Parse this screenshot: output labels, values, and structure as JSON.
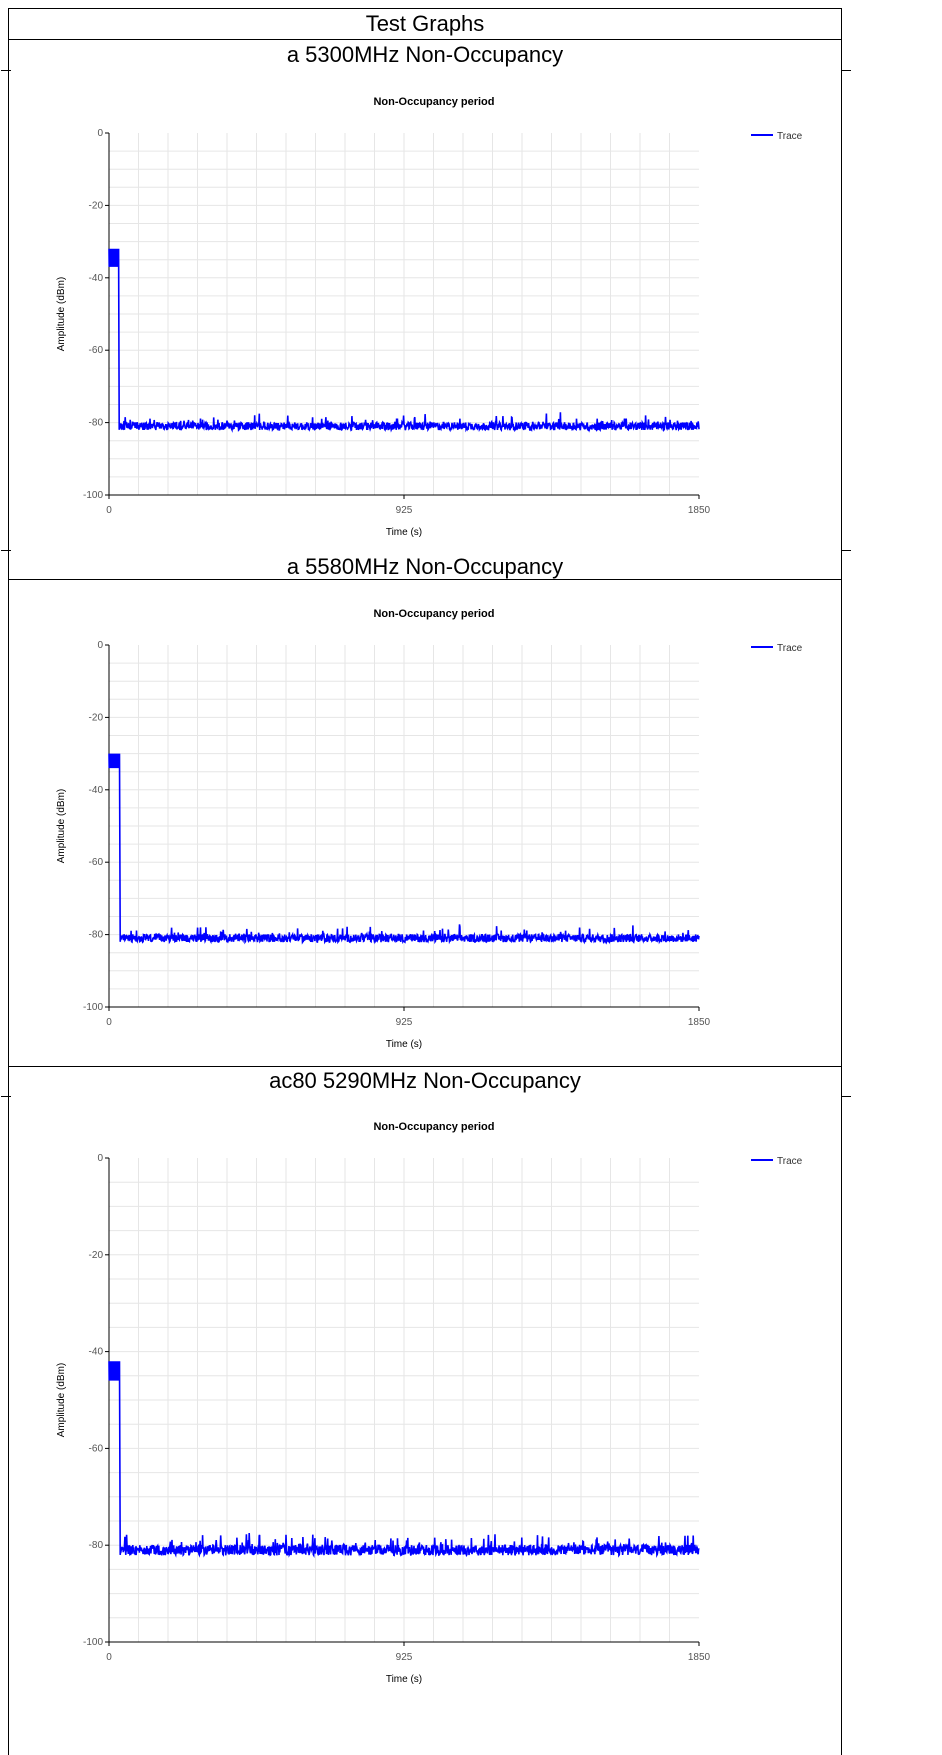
{
  "page": {
    "header": "Test Graphs"
  },
  "sections": [
    {
      "title": "a 5300MHz Non-Occupancy"
    },
    {
      "title": "a 5580MHz Non-Occupancy"
    },
    {
      "title": "ac80 5290MHz Non-Occupancy"
    }
  ],
  "colors": {
    "trace": "#0000ff",
    "grid": "#e6e6e6",
    "axis": "#000000"
  },
  "chart_data": [
    {
      "type": "line",
      "title": "Non-Occupancy period",
      "xlabel": "Time (s)",
      "ylabel": "Amplitude (dBm)",
      "xlim": [
        0,
        1850
      ],
      "ylim": [
        -100,
        0
      ],
      "x_ticks": [
        "0",
        "925",
        "1850"
      ],
      "y_ticks": [
        "0",
        "-20",
        "-40",
        "-60",
        "-80",
        "-100"
      ],
      "grid": true,
      "legend_position": "top-right",
      "series": [
        {
          "name": "Trace",
          "x": [
            0,
            8,
            30,
            32,
            34,
            60,
            200,
            400,
            600,
            800,
            1000,
            1200,
            1400,
            1600,
            1850
          ],
          "y": [
            -37,
            -32,
            -32,
            -82,
            -81,
            -81,
            -81,
            -81,
            -81,
            -81,
            -81,
            -81,
            -81,
            -81,
            -81
          ],
          "band_high": -32,
          "band_low": -37,
          "noise_floor": -81
        }
      ]
    },
    {
      "type": "line",
      "title": "Non-Occupancy period",
      "xlabel": "Time (s)",
      "ylabel": "Amplitude (dBm)",
      "xlim": [
        0,
        1850
      ],
      "ylim": [
        -100,
        0
      ],
      "x_ticks": [
        "0",
        "925",
        "1850"
      ],
      "y_ticks": [
        "0",
        "-20",
        "-40",
        "-60",
        "-80",
        "-100"
      ],
      "grid": true,
      "legend_position": "top-right",
      "series": [
        {
          "name": "Trace",
          "x": [
            0,
            8,
            33,
            35,
            37,
            60,
            200,
            400,
            600,
            800,
            1000,
            1200,
            1400,
            1600,
            1850
          ],
          "y": [
            -34,
            -30,
            -30,
            -82,
            -81,
            -81,
            -81,
            -81,
            -81,
            -81,
            -81,
            -81,
            -81,
            -81,
            -81
          ],
          "band_high": -30,
          "band_low": -34,
          "noise_floor": -81
        }
      ]
    },
    {
      "type": "line",
      "title": "Non-Occupancy period",
      "xlabel": "Time (s)",
      "ylabel": "Amplitude (dBm)",
      "xlim": [
        0,
        1850
      ],
      "ylim": [
        -100,
        0
      ],
      "x_ticks": [
        "0",
        "925",
        "1850"
      ],
      "y_ticks": [
        "0",
        "-20",
        "-40",
        "-60",
        "-80",
        "-100"
      ],
      "grid": true,
      "legend_position": "top-right",
      "series": [
        {
          "name": "Trace",
          "x": [
            0,
            8,
            33,
            35,
            37,
            60,
            200,
            400,
            600,
            800,
            1000,
            1200,
            1400,
            1600,
            1850
          ],
          "y": [
            -46,
            -42,
            -42,
            -82,
            -81,
            -81,
            -81,
            -81,
            -81,
            -81,
            -81,
            -81,
            -81,
            -81,
            -81
          ],
          "band_high": -42,
          "band_low": -46,
          "noise_floor": -81
        }
      ]
    }
  ]
}
